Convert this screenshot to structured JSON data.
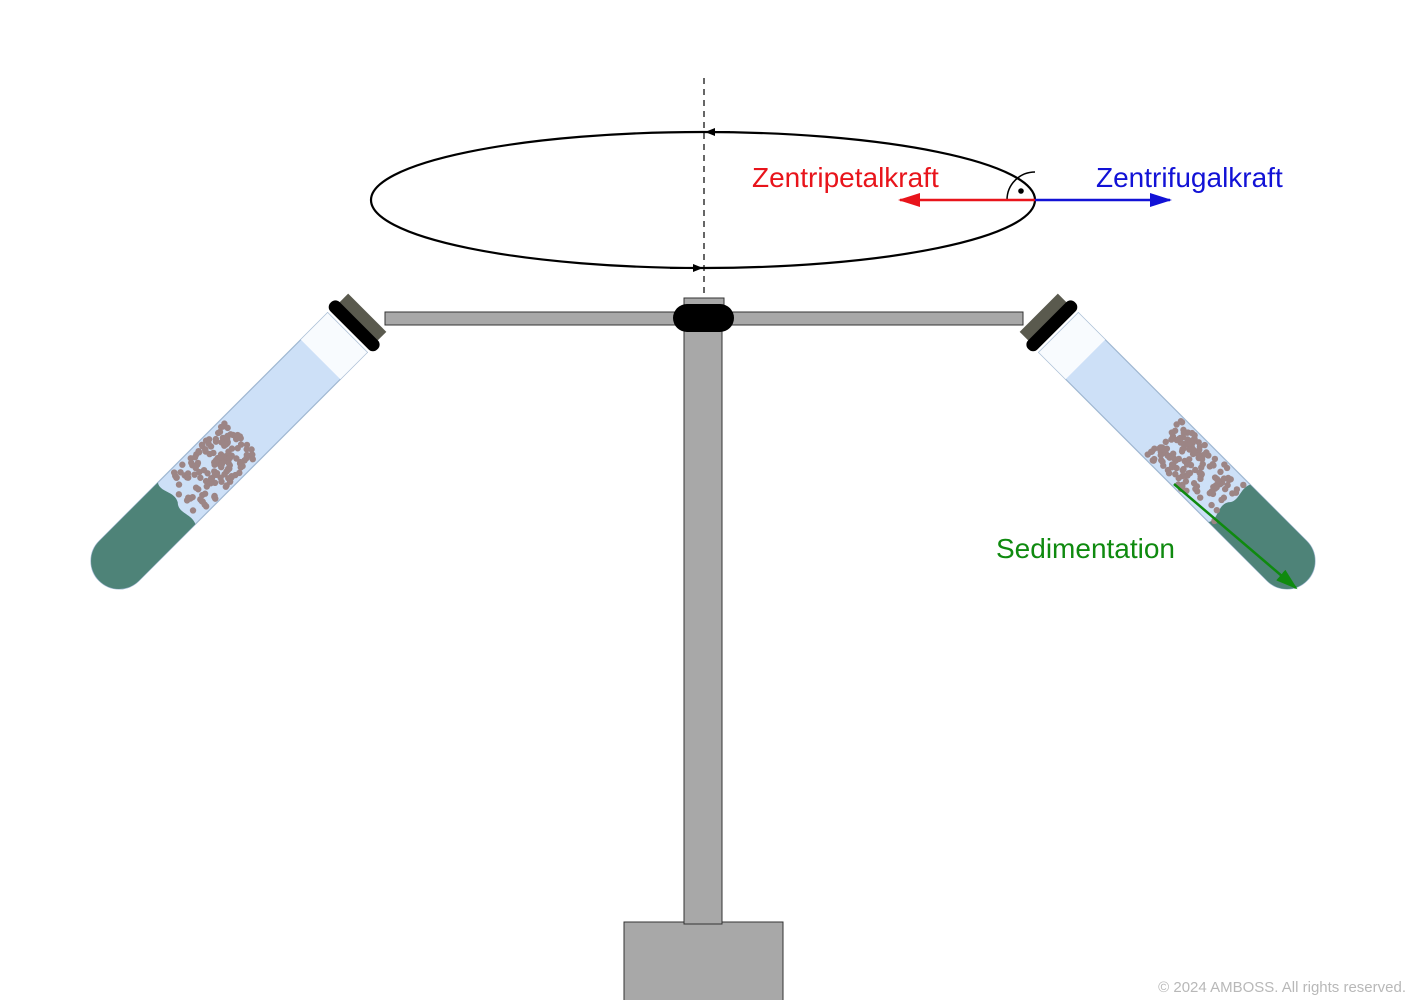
{
  "labels": {
    "centripetal": "Zentripetalkraft",
    "centrifugal": "Zentrifugalkraft",
    "sedimentation": "Sedimentation"
  },
  "copyright": "© 2024 AMBOSS. All rights reserved.",
  "colors": {
    "centripetal": "#e8141b",
    "centrifugal": "#1212d6",
    "sedimentation": "#0f8a0f",
    "frame": "#a8a8a8",
    "tube_liquid": "#cde0f7",
    "sediment": "#4e8378",
    "particles": "#9c8585"
  }
}
